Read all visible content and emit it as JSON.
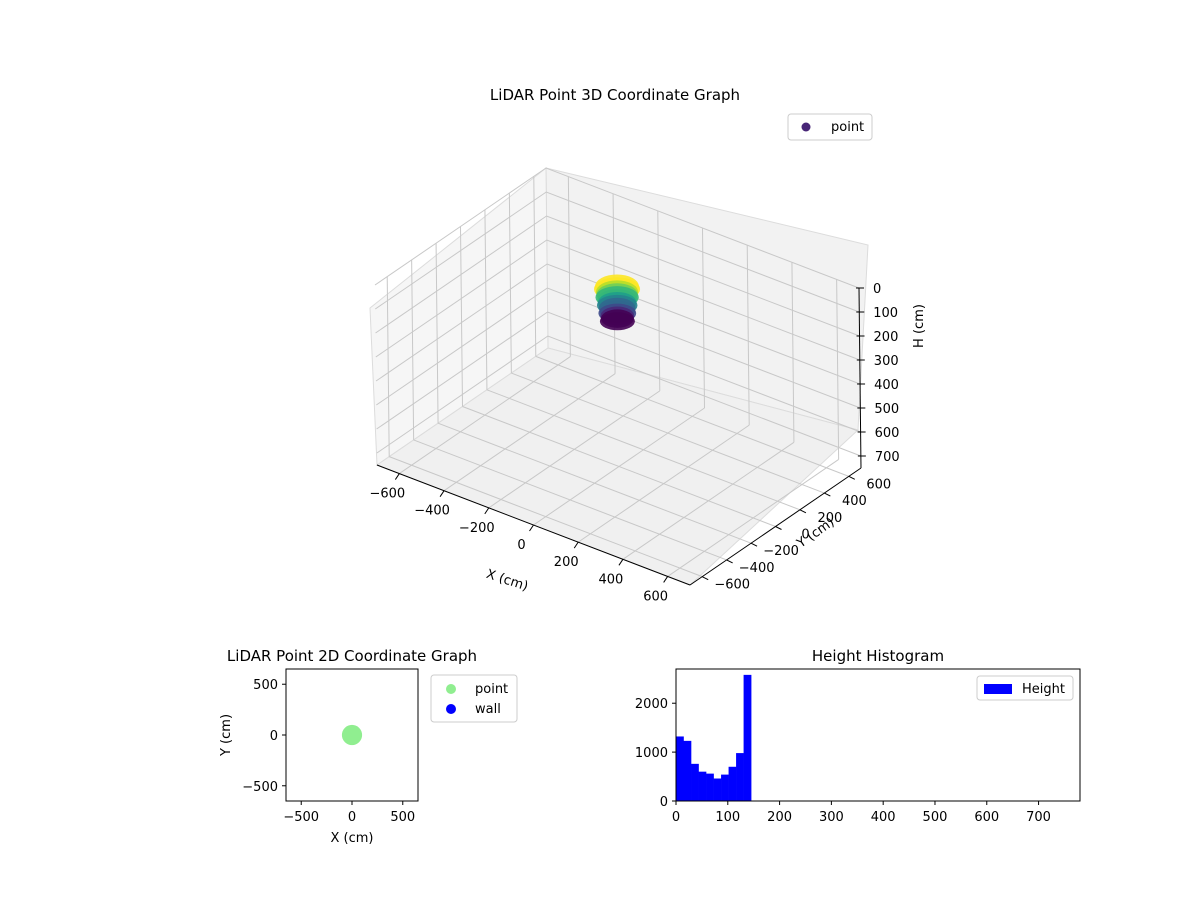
{
  "chart_data": [
    {
      "type": "scatter",
      "projection": "3d",
      "title": "LiDAR Point 3D Coordinate Graph",
      "xlabel": "X (cm)",
      "ylabel": "Y (cm)",
      "zlabel": "H (cm)",
      "xlim": [
        -700,
        700
      ],
      "ylim": [
        -700,
        700
      ],
      "zlim": [
        0,
        750
      ],
      "z_inverted": true,
      "xticks": [
        -600,
        -400,
        -200,
        0,
        200,
        400,
        600
      ],
      "yticks": [
        -600,
        -400,
        -200,
        0,
        200,
        400,
        600
      ],
      "zticks": [
        0,
        100,
        200,
        300,
        400,
        500,
        600,
        700
      ],
      "legend": {
        "placement": "top-right",
        "entries": [
          "point"
        ]
      },
      "colormap": "viridis",
      "series": [
        {
          "name": "point",
          "color": "#482677",
          "cluster": {
            "center_x": 0,
            "center_y": 0,
            "radius": 60,
            "h_min": 0,
            "h_max": 145
          }
        }
      ]
    },
    {
      "type": "scatter",
      "title": "LiDAR Point 2D Coordinate Graph",
      "xlabel": "X (cm)",
      "ylabel": "Y (cm)",
      "xlim": [
        -650,
        650
      ],
      "ylim": [
        -650,
        650
      ],
      "xticks": [
        -500,
        0,
        500
      ],
      "yticks": [
        -500,
        0,
        500
      ],
      "legend": {
        "placement": "outside-right",
        "entries": [
          "point",
          "wall"
        ]
      },
      "series": [
        {
          "name": "point",
          "color": "#90ee90",
          "cluster": {
            "center_x": 0,
            "center_y": 0,
            "radius": 70
          }
        },
        {
          "name": "wall",
          "color": "#0000ff",
          "points": []
        }
      ]
    },
    {
      "type": "bar",
      "subtype": "histogram",
      "title": "Height Histogram",
      "xlim": [
        0,
        780
      ],
      "ylim": [
        0,
        2700
      ],
      "xticks": [
        0,
        100,
        200,
        300,
        400,
        500,
        600,
        700
      ],
      "yticks": [
        0,
        1000,
        2000
      ],
      "legend": {
        "placement": "top-right",
        "entries": [
          "Height"
        ]
      },
      "series": [
        {
          "name": "Height",
          "color": "#0000ff",
          "bin_width": 14.5,
          "bin_start": 0,
          "values": [
            1320,
            1230,
            760,
            600,
            560,
            460,
            540,
            700,
            980,
            2580
          ]
        }
      ]
    }
  ]
}
